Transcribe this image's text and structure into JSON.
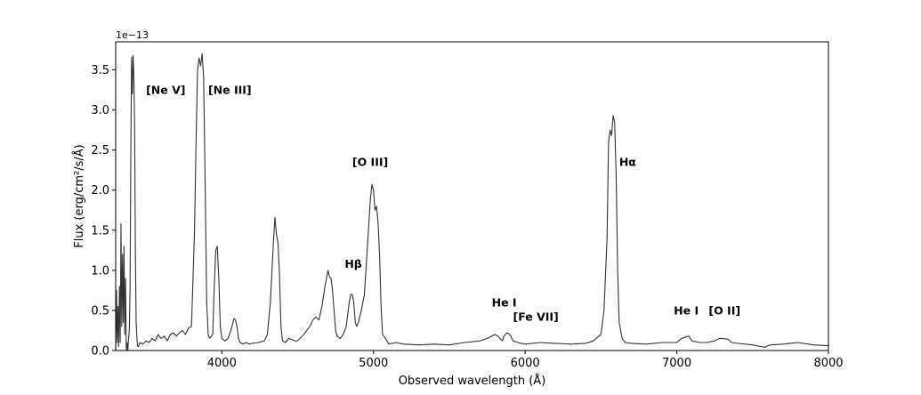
{
  "chart_data": {
    "type": "line",
    "xlabel": "Observed wavelength (Å)",
    "ylabel": "Flux (erg/cm²/s/Å)",
    "y_offset_label": "1e−13",
    "y_scale_exponent": -13,
    "xlim": [
      3300,
      8000
    ],
    "ylim": [
      0.0,
      3.85
    ],
    "x_ticks": [
      4000,
      5000,
      6000,
      7000,
      8000
    ],
    "x_tick_labels": [
      "4000",
      "5000",
      "6000",
      "7000",
      "8000"
    ],
    "y_ticks": [
      0.0,
      0.5,
      1.0,
      1.5,
      2.0,
      2.5,
      3.0,
      3.5
    ],
    "y_tick_labels": [
      "0.0",
      "0.5",
      "1.0",
      "1.5",
      "2.0",
      "2.5",
      "3.0",
      "3.5"
    ],
    "grid": false,
    "series": [
      {
        "color": "#333333",
        "x": [
          3300,
          3305,
          3310,
          3315,
          3320,
          3325,
          3330,
          3335,
          3340,
          3345,
          3350,
          3355,
          3360,
          3365,
          3370,
          3375,
          3380,
          3385,
          3390,
          3395,
          3400,
          3405,
          3410,
          3415,
          3420,
          3425,
          3430,
          3435,
          3440,
          3445,
          3450,
          3460,
          3480,
          3500,
          3520,
          3540,
          3560,
          3580,
          3600,
          3620,
          3640,
          3660,
          3680,
          3700,
          3720,
          3740,
          3760,
          3780,
          3800,
          3820,
          3830,
          3840,
          3850,
          3860,
          3870,
          3880,
          3890,
          3900,
          3910,
          3920,
          3940,
          3950,
          3960,
          3970,
          3980,
          3990,
          4000,
          4020,
          4040,
          4060,
          4080,
          4090,
          4100,
          4110,
          4120,
          4140,
          4160,
          4180,
          4200,
          4240,
          4280,
          4300,
          4320,
          4340,
          4350,
          4360,
          4370,
          4380,
          4390,
          4400,
          4420,
          4440,
          4460,
          4480,
          4500,
          4540,
          4580,
          4600,
          4620,
          4640,
          4660,
          4680,
          4700,
          4710,
          4720,
          4730,
          4740,
          4750,
          4760,
          4780,
          4800,
          4820,
          4840,
          4850,
          4860,
          4870,
          4880,
          4890,
          4900,
          4920,
          4940,
          4960,
          4980,
          4990,
          5000,
          5010,
          5020,
          5030,
          5040,
          5050,
          5060,
          5080,
          5100,
          5150,
          5200,
          5300,
          5400,
          5500,
          5600,
          5700,
          5750,
          5800,
          5820,
          5850,
          5860,
          5880,
          5900,
          5920,
          5950,
          6000,
          6100,
          6200,
          6300,
          6400,
          6450,
          6500,
          6520,
          6540,
          6550,
          6560,
          6570,
          6580,
          6590,
          6600,
          6610,
          6620,
          6640,
          6660,
          6700,
          6800,
          6900,
          7000,
          7030,
          7060,
          7080,
          7100,
          7150,
          7200,
          7250,
          7280,
          7300,
          7340,
          7360,
          7400,
          7500,
          7580,
          7600,
          7620,
          7700,
          7800,
          7900,
          8000
        ],
        "y": [
          0.0,
          0.75,
          0.1,
          0.55,
          0.05,
          0.8,
          0.1,
          1.58,
          0.3,
          1.2,
          0.35,
          1.3,
          0.2,
          0.9,
          0.0,
          0.1,
          0.0,
          0.15,
          0.25,
          0.8,
          2.5,
          3.66,
          3.2,
          3.68,
          3.4,
          2.8,
          1.2,
          0.35,
          0.15,
          0.05,
          0.05,
          0.1,
          0.08,
          0.12,
          0.1,
          0.15,
          0.12,
          0.2,
          0.15,
          0.18,
          0.12,
          0.2,
          0.22,
          0.18,
          0.22,
          0.25,
          0.2,
          0.28,
          0.3,
          1.5,
          2.6,
          3.5,
          3.65,
          3.55,
          3.7,
          3.4,
          2.1,
          0.6,
          0.2,
          0.15,
          0.2,
          0.8,
          1.25,
          1.3,
          0.9,
          0.3,
          0.15,
          0.12,
          0.15,
          0.25,
          0.4,
          0.38,
          0.3,
          0.15,
          0.1,
          0.08,
          0.1,
          0.08,
          0.09,
          0.1,
          0.12,
          0.2,
          0.6,
          1.35,
          1.66,
          1.45,
          1.35,
          0.95,
          0.3,
          0.12,
          0.1,
          0.15,
          0.14,
          0.12,
          0.12,
          0.2,
          0.3,
          0.38,
          0.42,
          0.38,
          0.55,
          0.8,
          1.0,
          0.92,
          0.9,
          0.75,
          0.5,
          0.25,
          0.18,
          0.15,
          0.2,
          0.3,
          0.6,
          0.7,
          0.7,
          0.6,
          0.35,
          0.3,
          0.35,
          0.5,
          0.7,
          1.3,
          1.9,
          2.07,
          2.0,
          1.75,
          1.8,
          1.6,
          1.2,
          0.55,
          0.2,
          0.15,
          0.08,
          0.1,
          0.08,
          0.07,
          0.08,
          0.07,
          0.1,
          0.12,
          0.15,
          0.2,
          0.18,
          0.12,
          0.18,
          0.22,
          0.2,
          0.12,
          0.1,
          0.08,
          0.1,
          0.09,
          0.08,
          0.09,
          0.12,
          0.2,
          0.5,
          1.4,
          2.6,
          2.75,
          2.68,
          2.93,
          2.85,
          2.2,
          1.0,
          0.35,
          0.15,
          0.1,
          0.09,
          0.08,
          0.1,
          0.1,
          0.15,
          0.17,
          0.18,
          0.12,
          0.1,
          0.1,
          0.12,
          0.15,
          0.15,
          0.14,
          0.1,
          0.09,
          0.07,
          0.04,
          0.06,
          0.07,
          0.08,
          0.1,
          0.07,
          0.06
        ]
      }
    ],
    "annotations": [
      {
        "text": "[Ne V]",
        "x": 3500,
        "y": 3.2
      },
      {
        "text": "[Ne III]",
        "x": 3910,
        "y": 3.2
      },
      {
        "text": "Hβ",
        "x": 4810,
        "y": 1.03
      },
      {
        "text": "[O III]",
        "x": 4860,
        "y": 2.3
      },
      {
        "text": "He I",
        "x": 5780,
        "y": 0.55
      },
      {
        "text": "[Fe VII]",
        "x": 5920,
        "y": 0.37
      },
      {
        "text": "Hα",
        "x": 6620,
        "y": 2.3
      },
      {
        "text": "He I",
        "x": 6980,
        "y": 0.45
      },
      {
        "text": "[O II]",
        "x": 7210,
        "y": 0.45
      }
    ]
  }
}
